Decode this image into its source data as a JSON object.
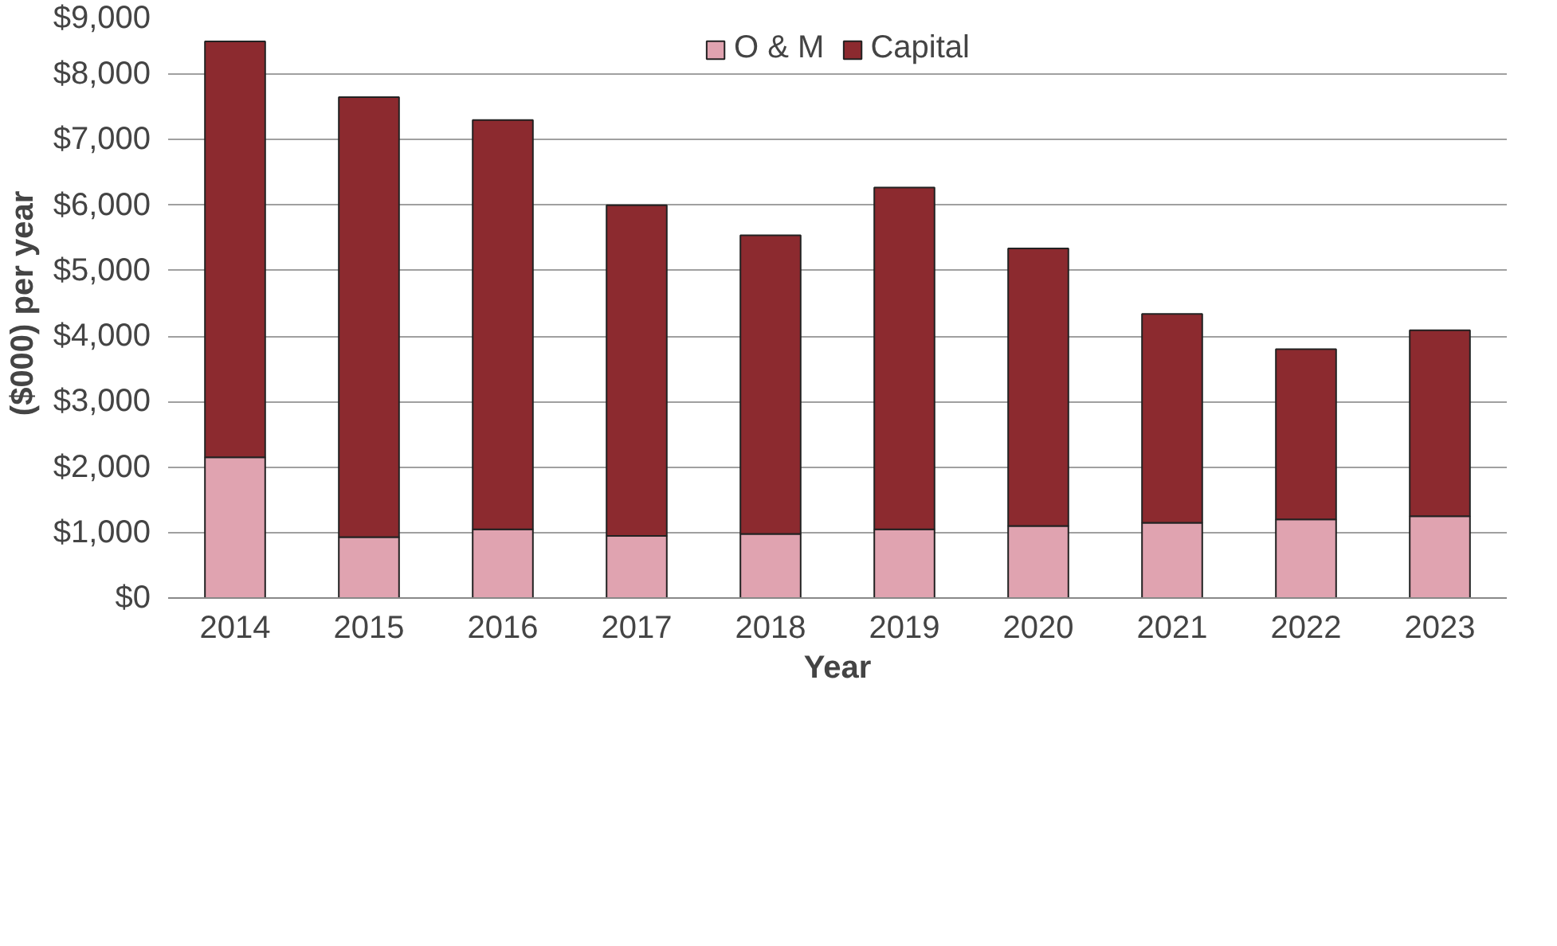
{
  "chart_data": {
    "type": "bar",
    "stacked": true,
    "xlabel": "Year",
    "ylabel": "($000) per year",
    "categories": [
      "2014",
      "2015",
      "2016",
      "2017",
      "2018",
      "2019",
      "2020",
      "2021",
      "2022",
      "2023"
    ],
    "series": [
      {
        "name": "O & M",
        "color": "#e0a3b0",
        "values": [
          2150,
          930,
          1050,
          950,
          980,
          1050,
          1100,
          1150,
          1200,
          1250
        ]
      },
      {
        "name": "Capital",
        "color": "#8c2a2f",
        "values": [
          6350,
          6720,
          6250,
          5050,
          4560,
          5220,
          4240,
          3190,
          2600,
          2840
        ]
      }
    ],
    "ylim": [
      0,
      9000
    ],
    "yticks": [
      {
        "value": 0,
        "label": "$0"
      },
      {
        "value": 1000,
        "label": "$1,000"
      },
      {
        "value": 2000,
        "label": "$2,000"
      },
      {
        "value": 3000,
        "label": "$3,000"
      },
      {
        "value": 4000,
        "label": "$4,000"
      },
      {
        "value": 5000,
        "label": "$5,000"
      },
      {
        "value": 6000,
        "label": "$6,000"
      },
      {
        "value": 7000,
        "label": "$7,000"
      },
      {
        "value": 8000,
        "label": "$8,000"
      },
      {
        "value": 9000,
        "label": "$9,000"
      }
    ],
    "grid": "y",
    "legend": "top"
  }
}
